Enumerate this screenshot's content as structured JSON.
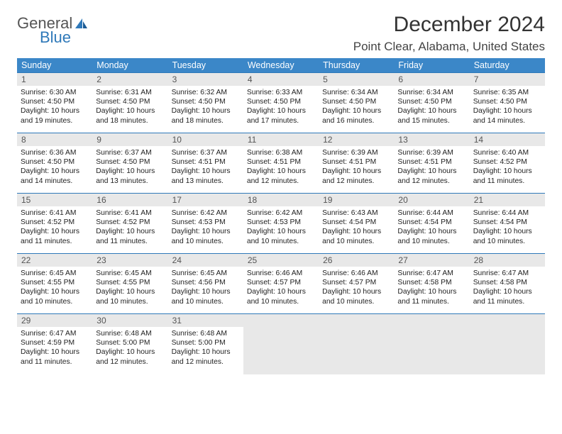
{
  "logo": {
    "word1": "General",
    "word2": "Blue"
  },
  "title": "December 2024",
  "location": "Point Clear, Alabama, United States",
  "colors": {
    "header_bg": "#3b87c8",
    "border": "#2f79b9",
    "daynum_bg": "#e8e8e8",
    "text": "#222222"
  },
  "weekdays": [
    "Sunday",
    "Monday",
    "Tuesday",
    "Wednesday",
    "Thursday",
    "Friday",
    "Saturday"
  ],
  "days": [
    {
      "n": "1",
      "sr": "6:30 AM",
      "ss": "4:50 PM",
      "dl": "10 hours and 19 minutes."
    },
    {
      "n": "2",
      "sr": "6:31 AM",
      "ss": "4:50 PM",
      "dl": "10 hours and 18 minutes."
    },
    {
      "n": "3",
      "sr": "6:32 AM",
      "ss": "4:50 PM",
      "dl": "10 hours and 18 minutes."
    },
    {
      "n": "4",
      "sr": "6:33 AM",
      "ss": "4:50 PM",
      "dl": "10 hours and 17 minutes."
    },
    {
      "n": "5",
      "sr": "6:34 AM",
      "ss": "4:50 PM",
      "dl": "10 hours and 16 minutes."
    },
    {
      "n": "6",
      "sr": "6:34 AM",
      "ss": "4:50 PM",
      "dl": "10 hours and 15 minutes."
    },
    {
      "n": "7",
      "sr": "6:35 AM",
      "ss": "4:50 PM",
      "dl": "10 hours and 14 minutes."
    },
    {
      "n": "8",
      "sr": "6:36 AM",
      "ss": "4:50 PM",
      "dl": "10 hours and 14 minutes."
    },
    {
      "n": "9",
      "sr": "6:37 AM",
      "ss": "4:50 PM",
      "dl": "10 hours and 13 minutes."
    },
    {
      "n": "10",
      "sr": "6:37 AM",
      "ss": "4:51 PM",
      "dl": "10 hours and 13 minutes."
    },
    {
      "n": "11",
      "sr": "6:38 AM",
      "ss": "4:51 PM",
      "dl": "10 hours and 12 minutes."
    },
    {
      "n": "12",
      "sr": "6:39 AM",
      "ss": "4:51 PM",
      "dl": "10 hours and 12 minutes."
    },
    {
      "n": "13",
      "sr": "6:39 AM",
      "ss": "4:51 PM",
      "dl": "10 hours and 12 minutes."
    },
    {
      "n": "14",
      "sr": "6:40 AM",
      "ss": "4:52 PM",
      "dl": "10 hours and 11 minutes."
    },
    {
      "n": "15",
      "sr": "6:41 AM",
      "ss": "4:52 PM",
      "dl": "10 hours and 11 minutes."
    },
    {
      "n": "16",
      "sr": "6:41 AM",
      "ss": "4:52 PM",
      "dl": "10 hours and 11 minutes."
    },
    {
      "n": "17",
      "sr": "6:42 AM",
      "ss": "4:53 PM",
      "dl": "10 hours and 10 minutes."
    },
    {
      "n": "18",
      "sr": "6:42 AM",
      "ss": "4:53 PM",
      "dl": "10 hours and 10 minutes."
    },
    {
      "n": "19",
      "sr": "6:43 AM",
      "ss": "4:54 PM",
      "dl": "10 hours and 10 minutes."
    },
    {
      "n": "20",
      "sr": "6:44 AM",
      "ss": "4:54 PM",
      "dl": "10 hours and 10 minutes."
    },
    {
      "n": "21",
      "sr": "6:44 AM",
      "ss": "4:54 PM",
      "dl": "10 hours and 10 minutes."
    },
    {
      "n": "22",
      "sr": "6:45 AM",
      "ss": "4:55 PM",
      "dl": "10 hours and 10 minutes."
    },
    {
      "n": "23",
      "sr": "6:45 AM",
      "ss": "4:55 PM",
      "dl": "10 hours and 10 minutes."
    },
    {
      "n": "24",
      "sr": "6:45 AM",
      "ss": "4:56 PM",
      "dl": "10 hours and 10 minutes."
    },
    {
      "n": "25",
      "sr": "6:46 AM",
      "ss": "4:57 PM",
      "dl": "10 hours and 10 minutes."
    },
    {
      "n": "26",
      "sr": "6:46 AM",
      "ss": "4:57 PM",
      "dl": "10 hours and 10 minutes."
    },
    {
      "n": "27",
      "sr": "6:47 AM",
      "ss": "4:58 PM",
      "dl": "10 hours and 11 minutes."
    },
    {
      "n": "28",
      "sr": "6:47 AM",
      "ss": "4:58 PM",
      "dl": "10 hours and 11 minutes."
    },
    {
      "n": "29",
      "sr": "6:47 AM",
      "ss": "4:59 PM",
      "dl": "10 hours and 11 minutes."
    },
    {
      "n": "30",
      "sr": "6:48 AM",
      "ss": "5:00 PM",
      "dl": "10 hours and 12 minutes."
    },
    {
      "n": "31",
      "sr": "6:48 AM",
      "ss": "5:00 PM",
      "dl": "10 hours and 12 minutes."
    }
  ],
  "labels": {
    "sunrise": "Sunrise:",
    "sunset": "Sunset:",
    "daylight": "Daylight:"
  },
  "layout": {
    "first_weekday_offset": 0,
    "trailing_empty": 4
  }
}
